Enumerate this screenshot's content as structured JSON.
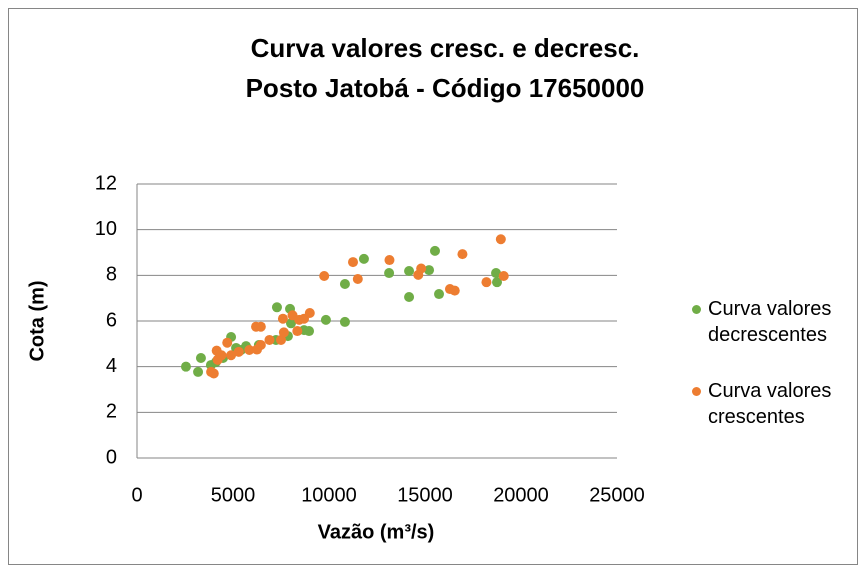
{
  "chart_data": {
    "type": "scatter",
    "title": [
      "Curva valores cresc. e decresc.",
      "Posto Jatobá - Código 17650000"
    ],
    "xlabel": "Vazão (m³/s)",
    "ylabel": "Cota (m)",
    "xlim": [
      0,
      25000
    ],
    "xticks": [
      0,
      5000,
      10000,
      15000,
      20000,
      25000
    ],
    "ylim": [
      0,
      12
    ],
    "yticks": [
      0,
      2,
      4,
      6,
      8,
      10,
      12
    ],
    "grid": true,
    "legend": "right",
    "series": [
      {
        "name": "Curva valores decrescentes",
        "color": "#70ad47",
        "x": [
          2550,
          3180,
          3330,
          3850,
          4110,
          4480,
          4900,
          5160,
          5420,
          5680,
          6350,
          7240,
          7290,
          8020,
          7970,
          7860,
          8700,
          8960,
          9840,
          10830,
          10830,
          11820,
          13130,
          14170,
          14170,
          15210,
          15520,
          15730,
          18700,
          18750
        ],
        "values": [
          4.0,
          3.77,
          4.38,
          4.07,
          4.2,
          4.38,
          5.3,
          4.82,
          4.73,
          4.9,
          4.95,
          5.17,
          6.6,
          5.9,
          6.53,
          5.34,
          5.6,
          5.56,
          6.05,
          5.96,
          7.62,
          8.72,
          8.1,
          8.19,
          7.05,
          8.23,
          9.07,
          7.18,
          8.1,
          7.7
        ]
      },
      {
        "name": "Curva valores crescentes",
        "color": "#ed7d31",
        "x": [
          3860,
          4000,
          4200,
          4150,
          4400,
          4700,
          4900,
          5300,
          5850,
          6250,
          6450,
          6200,
          6450,
          6900,
          7500,
          7650,
          7600,
          8100,
          8450,
          8350,
          8700,
          9000,
          9750,
          11250,
          11500,
          13150,
          14650,
          14800,
          16300,
          16550,
          16950,
          18200,
          18950,
          19100
        ],
        "values": [
          3.77,
          3.7,
          4.3,
          4.7,
          4.5,
          5.05,
          4.5,
          4.65,
          4.73,
          4.75,
          4.95,
          5.75,
          5.75,
          5.17,
          5.17,
          5.5,
          6.1,
          6.25,
          6.05,
          5.56,
          6.1,
          6.35,
          7.97,
          8.58,
          7.84,
          8.67,
          8.02,
          8.3,
          7.4,
          7.33,
          8.93,
          7.7,
          9.58,
          7.97
        ]
      }
    ]
  }
}
